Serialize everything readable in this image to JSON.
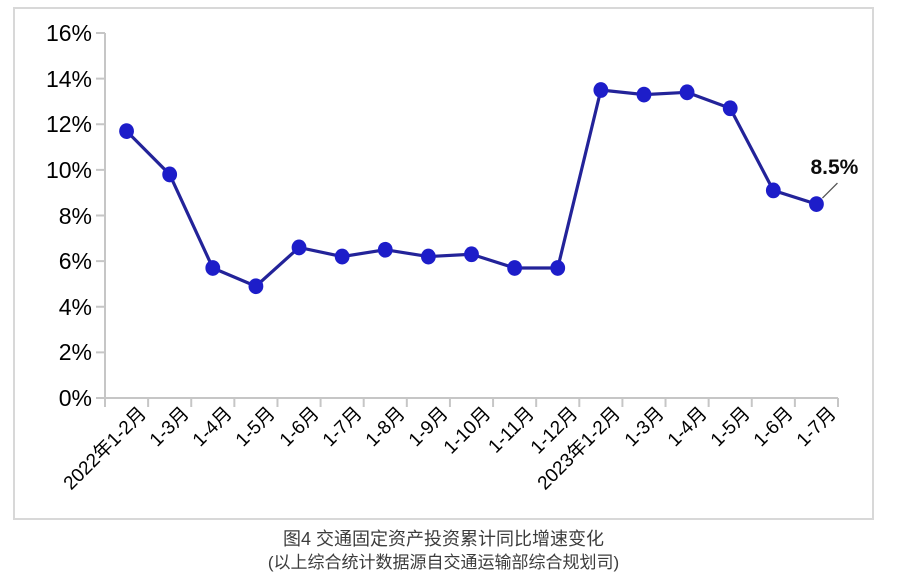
{
  "figure": {
    "caption_line1": "图4  交通固定资产投资累计同比增速变化",
    "caption_line2": "(以上综合统计数据源自交通运输部综合规划司)"
  },
  "chart_data": {
    "type": "line",
    "title": "",
    "categories": [
      "2022年1-2月",
      "1-3月",
      "1-4月",
      "1-5月",
      "1-6月",
      "1-7月",
      "1-8月",
      "1-9月",
      "1-10月",
      "1-11月",
      "1-12月",
      "2023年1-2月",
      "1-3月",
      "1-4月",
      "1-5月",
      "1-6月",
      "1-7月"
    ],
    "values": [
      11.7,
      9.8,
      5.7,
      4.9,
      6.6,
      6.2,
      6.5,
      6.2,
      6.3,
      5.7,
      5.7,
      13.5,
      13.3,
      13.4,
      12.7,
      9.1,
      8.5
    ],
    "xlabel": "",
    "ylabel": "",
    "ylim": [
      0,
      16
    ],
    "y_tick_step": 2,
    "y_tick_labels": [
      "0%",
      "2%",
      "4%",
      "6%",
      "8%",
      "10%",
      "12%",
      "14%",
      "16%"
    ],
    "grid": false,
    "legend": "none",
    "annotation": {
      "text": "8.5%",
      "index": 16
    },
    "colors": {
      "line": "#232399",
      "marker": "#1d1dc9",
      "axis": "#c6c6c6",
      "annotation_text": "#0d0d0d",
      "caption_text": "#3c3c3c"
    }
  }
}
